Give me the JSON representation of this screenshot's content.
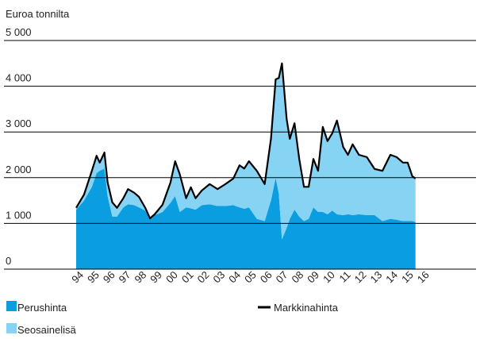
{
  "chart_data": {
    "type": "stacked-area-line",
    "y_label": "Euroa tonnilta",
    "x": [
      1994.0,
      1994.5,
      1995.0,
      1995.3,
      1995.5,
      1995.8,
      1996.0,
      1996.3,
      1996.6,
      1997.0,
      1997.3,
      1997.7,
      1998.0,
      1998.4,
      1998.7,
      1999.0,
      1999.5,
      2000.0,
      2000.3,
      2000.6,
      2001.0,
      2001.3,
      2001.6,
      2002.0,
      2002.5,
      2003.0,
      2003.5,
      2004.0,
      2004.4,
      2004.7,
      2005.0,
      2005.5,
      2006.0,
      2006.4,
      2006.7,
      2006.9,
      2007.1,
      2007.4,
      2007.6,
      2007.9,
      2008.2,
      2008.5,
      2008.8,
      2009.1,
      2009.4,
      2009.7,
      2010.0,
      2010.3,
      2010.6,
      2011.0,
      2011.3,
      2011.6,
      2012.0,
      2012.5,
      2013.0,
      2013.5,
      2014.0,
      2014.4,
      2014.8,
      2015.1,
      2015.4,
      2015.6
    ],
    "series": [
      {
        "name": "Perushinta",
        "color": "#0a9ee0",
        "kind": "area",
        "values": [
          1300,
          1500,
          1800,
          2100,
          2150,
          2200,
          1600,
          1150,
          1150,
          1350,
          1420,
          1400,
          1350,
          1280,
          1100,
          1180,
          1250,
          1450,
          1600,
          1250,
          1350,
          1330,
          1300,
          1400,
          1420,
          1380,
          1380,
          1400,
          1350,
          1320,
          1350,
          1100,
          1050,
          1500,
          2000,
          1650,
          650,
          900,
          1100,
          1300,
          1150,
          1050,
          1100,
          1350,
          1250,
          1250,
          1200,
          1280,
          1200,
          1180,
          1200,
          1180,
          1200,
          1180,
          1180,
          1050,
          1100,
          1080,
          1050,
          1050,
          1050,
          1030
        ]
      },
      {
        "name": "Seosainelisä",
        "color": "#86d3f4",
        "kind": "area",
        "values": [
          40,
          130,
          350,
          380,
          180,
          350,
          300,
          310,
          190,
          200,
          330,
          270,
          230,
          60,
          10,
          20,
          160,
          440,
          760,
          820,
          200,
          460,
          250,
          320,
          440,
          370,
          480,
          580,
          920,
          880,
          1010,
          1050,
          810,
          1350,
          2150,
          2530,
          3850,
          2380,
          1750,
          1890,
          1260,
          750,
          700,
          1060,
          900,
          1860,
          1600,
          1690,
          2050,
          1490,
          1300,
          1550,
          1300,
          1270,
          1010,
          1100,
          1400,
          1370,
          1280,
          1280,
          980,
          950
        ]
      },
      {
        "name": "Markkinahinta",
        "color": "#000000",
        "kind": "line",
        "values": [
          1340,
          1630,
          2150,
          2480,
          2330,
          2550,
          1900,
          1460,
          1340,
          1550,
          1750,
          1670,
          1580,
          1340,
          1110,
          1200,
          1410,
          1890,
          2360,
          2070,
          1550,
          1790,
          1550,
          1720,
          1860,
          1750,
          1860,
          1980,
          2270,
          2200,
          2360,
          2150,
          1860,
          2850,
          4150,
          4180,
          4500,
          3280,
          2850,
          3190,
          2410,
          1800,
          1800,
          2410,
          2150,
          3110,
          2800,
          2970,
          3250,
          2670,
          2500,
          2730,
          2500,
          2450,
          2190,
          2150,
          2500,
          2450,
          2330,
          2330,
          2030,
          1980
        ]
      }
    ],
    "xlim": [
      1994,
      2016
    ],
    "xticks": [
      {
        "value": 1994,
        "label": "94"
      },
      {
        "value": 1995,
        "label": "95"
      },
      {
        "value": 1996,
        "label": "96"
      },
      {
        "value": 1997,
        "label": "97"
      },
      {
        "value": 1998,
        "label": "98"
      },
      {
        "value": 1999,
        "label": "99"
      },
      {
        "value": 2000,
        "label": "00"
      },
      {
        "value": 2001,
        "label": "01"
      },
      {
        "value": 2002,
        "label": "02"
      },
      {
        "value": 2003,
        "label": "03"
      },
      {
        "value": 2004,
        "label": "04"
      },
      {
        "value": 2005,
        "label": "05"
      },
      {
        "value": 2006,
        "label": "06"
      },
      {
        "value": 2007,
        "label": "07"
      },
      {
        "value": 2008,
        "label": "08"
      },
      {
        "value": 2009,
        "label": "09"
      },
      {
        "value": 2010,
        "label": "10"
      },
      {
        "value": 2011,
        "label": "11"
      },
      {
        "value": 2012,
        "label": "12"
      },
      {
        "value": 2013,
        "label": "13"
      },
      {
        "value": 2014,
        "label": "14"
      },
      {
        "value": 2015,
        "label": "15"
      },
      {
        "value": 2016,
        "label": "16"
      }
    ],
    "ylim": [
      0,
      5000
    ],
    "yticks": [
      0,
      {
        "value": 1000,
        "label": "1 000"
      },
      {
        "value": 2000,
        "label": "2 000"
      },
      {
        "value": 3000,
        "label": "3 000"
      },
      {
        "value": 4000,
        "label": "4 000"
      },
      {
        "value": 5000,
        "label": "5 000"
      }
    ],
    "grid": true,
    "legend": "bottom"
  }
}
